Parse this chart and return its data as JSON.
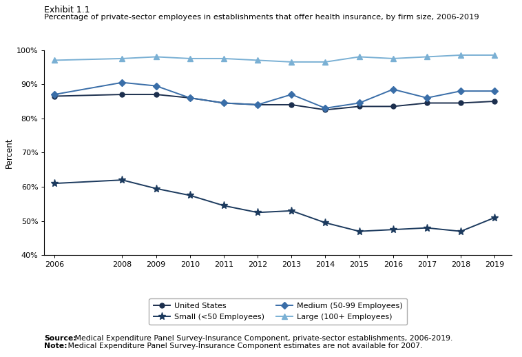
{
  "title_line1": "Exhibit 1.1",
  "title_line2": "Percentage of private-sector employees in establishments that offer health insurance, by firm size, 2006-2019",
  "years": [
    2006,
    2008,
    2009,
    2010,
    2011,
    2012,
    2013,
    2014,
    2015,
    2016,
    2017,
    2018,
    2019
  ],
  "us_overall": [
    86.5,
    87.0,
    87.0,
    86.0,
    84.5,
    84.0,
    84.0,
    82.5,
    83.5,
    83.5,
    84.5,
    84.5,
    85.0
  ],
  "small": [
    61.0,
    62.0,
    59.5,
    57.5,
    54.5,
    52.5,
    53.0,
    49.5,
    47.0,
    47.5,
    48.0,
    47.0,
    51.0
  ],
  "medium": [
    87.0,
    90.5,
    89.5,
    86.0,
    84.5,
    84.0,
    87.0,
    83.0,
    84.5,
    88.5,
    86.0,
    88.0,
    88.0
  ],
  "large": [
    97.0,
    97.5,
    98.0,
    97.5,
    97.5,
    97.0,
    96.5,
    96.5,
    98.0,
    97.5,
    98.0,
    98.5,
    98.5
  ],
  "color_us": "#1c2f4e",
  "color_small": "#1c3a5e",
  "color_medium": "#3a6ea8",
  "color_large": "#7ab0d4",
  "ylabel": "Percent",
  "ylim": [
    40,
    100
  ],
  "yticks": [
    40,
    50,
    60,
    70,
    80,
    90,
    100
  ],
  "ytick_labels": [
    "40%",
    "50%",
    "60%",
    "70%",
    "80%",
    "90%",
    "100%"
  ],
  "source_label": "Source:",
  "source_body": " Medical Expenditure Panel Survey-Insurance Component, private-sector establishments, 2006-2019.",
  "note_label": "Note:",
  "note_body": " Medical Expenditure Panel Survey-Insurance Component estimates are not available for 2007.",
  "legend_us": "United States",
  "legend_small": "Small (<50 Employees)",
  "legend_medium": "Medium (50-99 Employees)",
  "legend_large": "Large (100+ Employees)"
}
